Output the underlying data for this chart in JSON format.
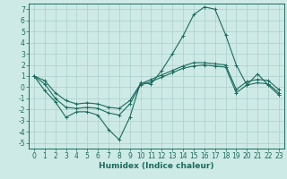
{
  "title": "",
  "xlabel": "Humidex (Indice chaleur)",
  "ylabel": "",
  "xlim": [
    -0.5,
    23.5
  ],
  "ylim": [
    -5.5,
    7.5
  ],
  "yticks": [
    -5,
    -4,
    -3,
    -2,
    -1,
    0,
    1,
    2,
    3,
    4,
    5,
    6,
    7
  ],
  "xticks": [
    0,
    1,
    2,
    3,
    4,
    5,
    6,
    7,
    8,
    9,
    10,
    11,
    12,
    13,
    14,
    15,
    16,
    17,
    18,
    19,
    20,
    21,
    22,
    23
  ],
  "background_color": "#ceeae6",
  "grid_color": "#aacfcb",
  "line_color": "#1a6b5e",
  "line1_y": [
    1.0,
    -0.3,
    -1.3,
    -2.7,
    -2.2,
    -2.2,
    -2.5,
    -3.8,
    -4.7,
    -2.7,
    0.4,
    0.3,
    1.5,
    3.0,
    4.6,
    6.5,
    7.2,
    7.0,
    4.7,
    2.0,
    0.2,
    1.2,
    0.2,
    -0.7
  ],
  "line2_y": [
    1.0,
    0.3,
    -1.0,
    -1.8,
    -1.9,
    -1.8,
    -1.9,
    -2.3,
    -2.5,
    -1.5,
    0.2,
    0.5,
    0.9,
    1.3,
    1.7,
    1.9,
    2.0,
    1.9,
    1.8,
    -0.5,
    0.2,
    0.4,
    0.3,
    -0.5
  ],
  "line3_y": [
    1.0,
    0.6,
    -0.5,
    -1.2,
    -1.5,
    -1.4,
    -1.5,
    -1.8,
    -1.9,
    -1.2,
    0.3,
    0.7,
    1.1,
    1.5,
    1.9,
    2.2,
    2.2,
    2.1,
    2.0,
    -0.2,
    0.5,
    0.7,
    0.6,
    -0.2
  ],
  "x": [
    0,
    1,
    2,
    3,
    4,
    5,
    6,
    7,
    8,
    9,
    10,
    11,
    12,
    13,
    14,
    15,
    16,
    17,
    18,
    19,
    20,
    21,
    22,
    23
  ],
  "tick_fontsize": 5.5,
  "xlabel_fontsize": 6.5
}
